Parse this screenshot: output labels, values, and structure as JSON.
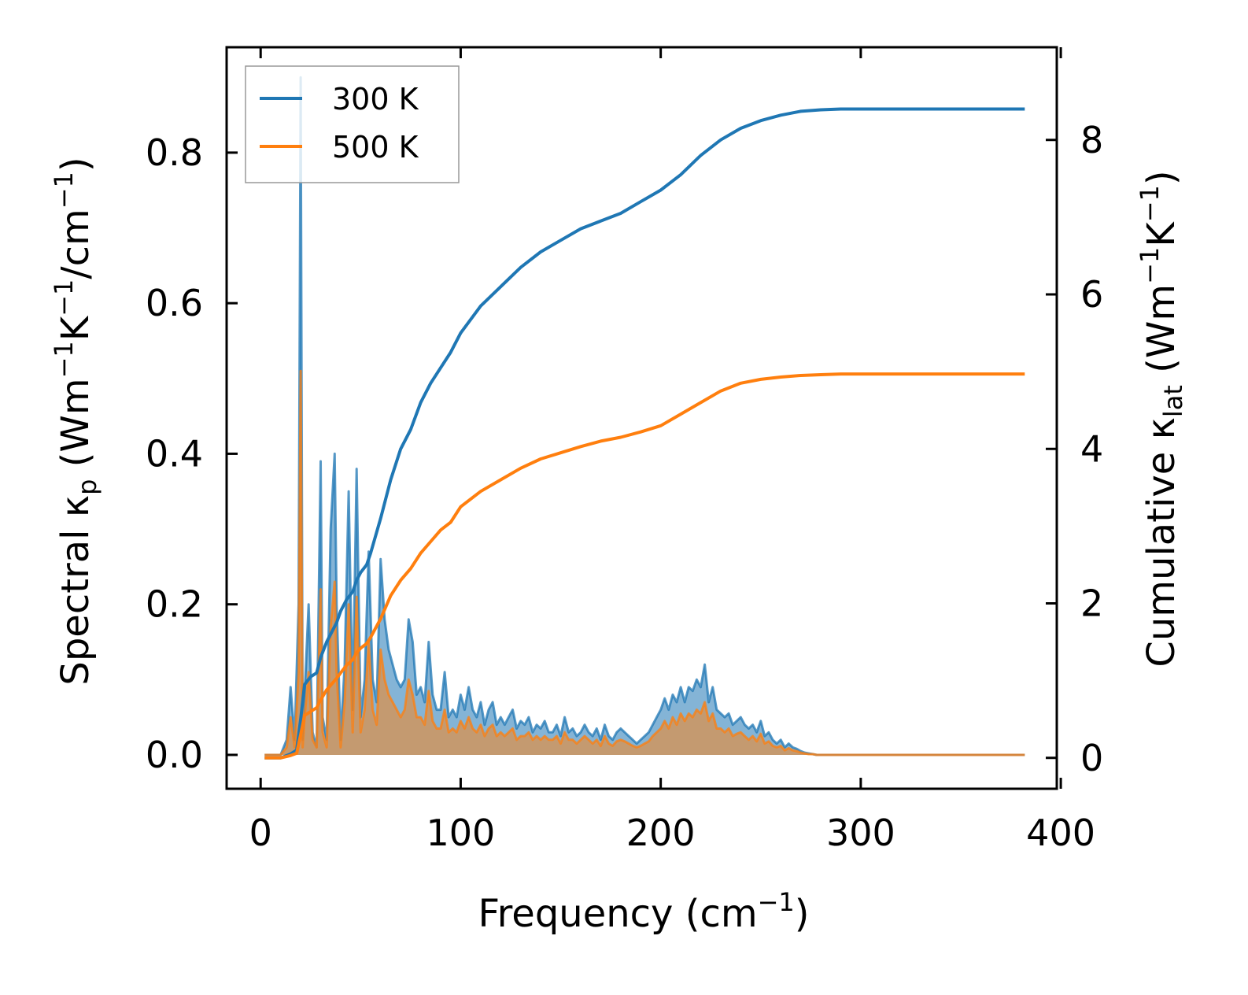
{
  "chart_data": {
    "type": "line",
    "title": "",
    "xlabel": "Frequency (cm⁻¹)",
    "ylabel_left": "Spectral κₚ (Wm⁻¹K⁻¹/cm⁻¹)",
    "ylabel_right": "Cumulative κˡᵃᵗ (Wm⁻¹K⁻¹)",
    "xlabel_parts": {
      "main": "Frequency (cm",
      "sup": "−1",
      "tail": ")"
    },
    "ylabel_left_parts": {
      "a": "Spectral κ",
      "sub": "p",
      "b": " (Wm",
      "sup1": "−1",
      "c": "K",
      "sup2": "−1",
      "d": "/cm",
      "sup3": "−1",
      "e": ")"
    },
    "ylabel_right_parts": {
      "a": "Cumulative κ",
      "sub": "lat",
      "b": " (Wm",
      "sup1": "−1",
      "c": "K",
      "sup2": "−1",
      "e": ")"
    },
    "xlim": [
      -17,
      398
    ],
    "ylim_left": [
      -0.045,
      0.94
    ],
    "ylim_right": [
      -0.4,
      9.2
    ],
    "xticks": [
      0,
      100,
      200,
      300,
      400
    ],
    "xtick_labels": [
      "0",
      "100",
      "200",
      "300",
      "400"
    ],
    "yticks_left": [
      0.0,
      0.2,
      0.4,
      0.6,
      0.8
    ],
    "ytick_labels_left": [
      "0.0",
      "0.2",
      "0.4",
      "0.6",
      "0.8"
    ],
    "yticks_right": [
      0,
      2,
      4,
      6,
      8
    ],
    "ytick_labels_right": [
      "0",
      "2",
      "4",
      "6",
      "8"
    ],
    "legend": {
      "position": "top-left",
      "entries": [
        "300 K",
        "500 K"
      ]
    },
    "colors": {
      "300 K": "#1f77b4",
      "500 K": "#ff7f0e"
    },
    "cumulative_series": [
      {
        "name": "300 K",
        "axis": "right",
        "x": [
          2,
          10,
          15,
          18,
          20,
          22,
          25,
          28,
          30,
          33,
          36,
          38,
          40,
          43,
          46,
          48,
          50,
          53,
          55,
          60,
          65,
          70,
          75,
          80,
          85,
          90,
          95,
          100,
          110,
          120,
          130,
          140,
          150,
          160,
          170,
          180,
          190,
          200,
          210,
          220,
          230,
          240,
          250,
          260,
          270,
          280,
          290,
          300,
          350,
          382
        ],
        "y": [
          0,
          0,
          0.05,
          0.1,
          0.5,
          0.95,
          1.05,
          1.1,
          1.3,
          1.5,
          1.65,
          1.75,
          1.9,
          2.05,
          2.15,
          2.3,
          2.4,
          2.5,
          2.65,
          3.1,
          3.6,
          4.0,
          4.25,
          4.6,
          4.85,
          5.05,
          5.25,
          5.5,
          5.85,
          6.1,
          6.35,
          6.55,
          6.7,
          6.85,
          6.95,
          7.05,
          7.2,
          7.35,
          7.55,
          7.8,
          8.0,
          8.15,
          8.25,
          8.32,
          8.37,
          8.39,
          8.4,
          8.4,
          8.4,
          8.4
        ]
      },
      {
        "name": "500 K",
        "axis": "right",
        "x": [
          2,
          10,
          15,
          18,
          20,
          22,
          25,
          28,
          30,
          33,
          36,
          38,
          40,
          43,
          46,
          48,
          50,
          53,
          55,
          60,
          65,
          70,
          75,
          80,
          85,
          90,
          95,
          100,
          110,
          120,
          130,
          140,
          150,
          160,
          170,
          180,
          190,
          200,
          210,
          220,
          230,
          240,
          250,
          260,
          270,
          280,
          290,
          300,
          350,
          382
        ],
        "y": [
          0,
          0,
          0.03,
          0.06,
          0.3,
          0.55,
          0.6,
          0.65,
          0.75,
          0.88,
          0.97,
          1.03,
          1.1,
          1.2,
          1.27,
          1.36,
          1.42,
          1.48,
          1.56,
          1.8,
          2.1,
          2.3,
          2.45,
          2.65,
          2.8,
          2.95,
          3.05,
          3.25,
          3.45,
          3.6,
          3.75,
          3.87,
          3.95,
          4.03,
          4.1,
          4.15,
          4.22,
          4.3,
          4.45,
          4.6,
          4.75,
          4.85,
          4.9,
          4.93,
          4.95,
          4.96,
          4.97,
          4.97,
          4.97,
          4.97
        ]
      }
    ],
    "spectral_series": [
      {
        "name": "300 K",
        "axis": "left",
        "x": [
          2,
          6,
          10,
          13,
          15,
          17,
          19,
          20,
          21,
          22,
          24,
          26,
          28,
          30,
          31,
          33,
          35,
          37,
          38,
          40,
          42,
          44,
          46,
          48,
          50,
          52,
          54,
          56,
          58,
          60,
          62,
          64,
          66,
          68,
          70,
          72,
          74,
          76,
          78,
          80,
          82,
          84,
          86,
          88,
          90,
          92,
          94,
          96,
          98,
          100,
          102,
          104,
          106,
          108,
          110,
          112,
          114,
          116,
          118,
          120,
          122,
          124,
          126,
          128,
          130,
          132,
          134,
          136,
          138,
          140,
          142,
          144,
          146,
          148,
          150,
          152,
          154,
          156,
          158,
          160,
          162,
          164,
          166,
          168,
          170,
          172,
          174,
          176,
          178,
          180,
          182,
          184,
          186,
          188,
          190,
          192,
          194,
          196,
          198,
          200,
          202,
          204,
          206,
          208,
          210,
          212,
          214,
          216,
          218,
          220,
          222,
          224,
          226,
          228,
          230,
          232,
          234,
          236,
          238,
          240,
          242,
          244,
          246,
          248,
          250,
          252,
          254,
          256,
          258,
          260,
          262,
          264,
          266,
          268,
          270,
          272,
          274,
          276,
          278,
          280,
          285,
          290,
          295,
          300,
          320,
          350,
          382
        ],
        "y": [
          0,
          0,
          0,
          0.02,
          0.09,
          0.02,
          0.2,
          0.9,
          0.02,
          0.08,
          0.2,
          0.03,
          0.01,
          0.39,
          0.05,
          0.02,
          0.3,
          0.4,
          0.2,
          0.02,
          0.12,
          0.35,
          0.06,
          0.38,
          0.05,
          0.1,
          0.27,
          0.1,
          0.07,
          0.26,
          0.18,
          0.14,
          0.12,
          0.1,
          0.09,
          0.1,
          0.18,
          0.15,
          0.08,
          0.09,
          0.07,
          0.15,
          0.08,
          0.06,
          0.06,
          0.11,
          0.05,
          0.06,
          0.05,
          0.08,
          0.06,
          0.09,
          0.06,
          0.05,
          0.07,
          0.04,
          0.06,
          0.07,
          0.04,
          0.05,
          0.04,
          0.05,
          0.06,
          0.035,
          0.045,
          0.04,
          0.05,
          0.03,
          0.04,
          0.035,
          0.045,
          0.03,
          0.03,
          0.04,
          0.025,
          0.05,
          0.03,
          0.035,
          0.025,
          0.03,
          0.04,
          0.03,
          0.025,
          0.035,
          0.02,
          0.04,
          0.025,
          0.02,
          0.03,
          0.035,
          0.03,
          0.025,
          0.02,
          0.015,
          0.02,
          0.025,
          0.03,
          0.04,
          0.05,
          0.06,
          0.075,
          0.06,
          0.08,
          0.07,
          0.09,
          0.07,
          0.09,
          0.085,
          0.1,
          0.09,
          0.12,
          0.07,
          0.09,
          0.06,
          0.055,
          0.05,
          0.055,
          0.04,
          0.045,
          0.05,
          0.04,
          0.035,
          0.04,
          0.03,
          0.045,
          0.025,
          0.03,
          0.02,
          0.015,
          0.02,
          0.01,
          0.015,
          0.01,
          0.008,
          0.005,
          0.003,
          0.002,
          0.001,
          0,
          0,
          0,
          0,
          0,
          0,
          0,
          0,
          0
        ]
      },
      {
        "name": "500 K",
        "axis": "left",
        "x": [
          2,
          6,
          10,
          13,
          15,
          17,
          19,
          20,
          21,
          22,
          24,
          26,
          28,
          30,
          31,
          33,
          35,
          37,
          38,
          40,
          42,
          44,
          46,
          48,
          50,
          52,
          54,
          56,
          58,
          60,
          62,
          64,
          66,
          68,
          70,
          72,
          74,
          76,
          78,
          80,
          82,
          84,
          86,
          88,
          90,
          92,
          94,
          96,
          98,
          100,
          102,
          104,
          106,
          108,
          110,
          112,
          114,
          116,
          118,
          120,
          122,
          124,
          126,
          128,
          130,
          132,
          134,
          136,
          138,
          140,
          142,
          144,
          146,
          148,
          150,
          152,
          154,
          156,
          158,
          160,
          162,
          164,
          166,
          168,
          170,
          172,
          174,
          176,
          178,
          180,
          182,
          184,
          186,
          188,
          190,
          192,
          194,
          196,
          198,
          200,
          202,
          204,
          206,
          208,
          210,
          212,
          214,
          216,
          218,
          220,
          222,
          224,
          226,
          228,
          230,
          232,
          234,
          236,
          238,
          240,
          242,
          244,
          246,
          248,
          250,
          252,
          254,
          256,
          258,
          260,
          262,
          264,
          266,
          268,
          270,
          272,
          274,
          276,
          278,
          280,
          285,
          290,
          295,
          300,
          320,
          350,
          382
        ],
        "y": [
          0,
          0,
          0,
          0.01,
          0.05,
          0.01,
          0.11,
          0.51,
          0.01,
          0.05,
          0.11,
          0.02,
          0.01,
          0.22,
          0.03,
          0.01,
          0.17,
          0.23,
          0.11,
          0.01,
          0.07,
          0.2,
          0.03,
          0.21,
          0.03,
          0.06,
          0.15,
          0.06,
          0.04,
          0.14,
          0.1,
          0.08,
          0.07,
          0.06,
          0.05,
          0.06,
          0.1,
          0.08,
          0.05,
          0.05,
          0.04,
          0.085,
          0.045,
          0.035,
          0.035,
          0.06,
          0.03,
          0.035,
          0.03,
          0.045,
          0.035,
          0.05,
          0.035,
          0.03,
          0.04,
          0.025,
          0.035,
          0.04,
          0.025,
          0.03,
          0.025,
          0.03,
          0.035,
          0.02,
          0.025,
          0.025,
          0.03,
          0.02,
          0.025,
          0.02,
          0.025,
          0.02,
          0.02,
          0.025,
          0.015,
          0.03,
          0.02,
          0.02,
          0.015,
          0.02,
          0.025,
          0.02,
          0.015,
          0.02,
          0.012,
          0.025,
          0.015,
          0.012,
          0.018,
          0.02,
          0.018,
          0.015,
          0.012,
          0.01,
          0.012,
          0.015,
          0.018,
          0.025,
          0.03,
          0.035,
          0.045,
          0.035,
          0.05,
          0.04,
          0.055,
          0.045,
          0.055,
          0.05,
          0.06,
          0.055,
          0.07,
          0.045,
          0.055,
          0.035,
          0.035,
          0.03,
          0.035,
          0.025,
          0.028,
          0.03,
          0.025,
          0.02,
          0.025,
          0.018,
          0.028,
          0.015,
          0.018,
          0.012,
          0.01,
          0.012,
          0.006,
          0.009,
          0.006,
          0.005,
          0.003,
          0.002,
          0.001,
          0.001,
          0,
          0,
          0,
          0,
          0,
          0,
          0,
          0,
          0
        ]
      }
    ]
  }
}
